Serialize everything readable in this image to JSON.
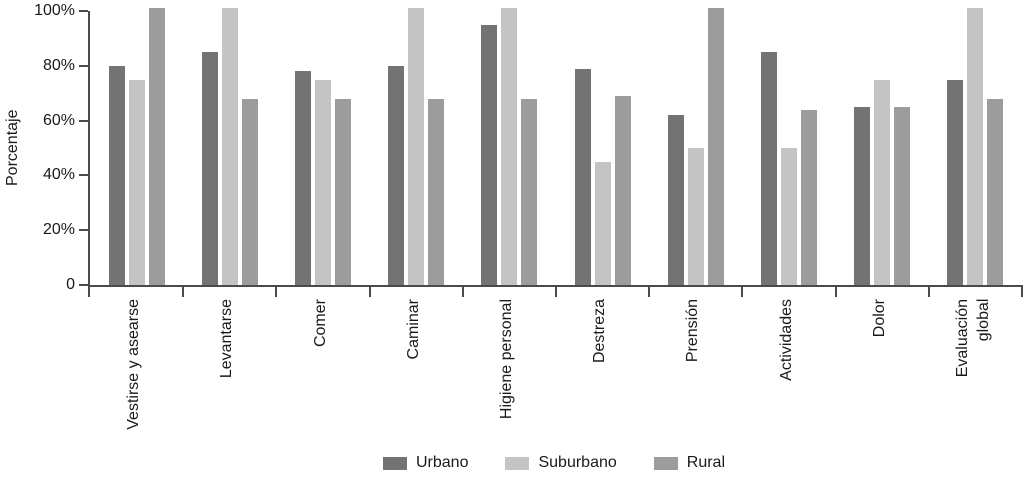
{
  "chart_data": {
    "type": "bar",
    "title": "",
    "xlabel": "",
    "ylabel": "Porcentaje",
    "ylim": [
      0,
      100
    ],
    "grid": false,
    "legend_position": "bottom-center",
    "yticks": [
      {
        "label": "100%",
        "value": 100
      },
      {
        "label": "80%",
        "value": 80
      },
      {
        "label": "60%",
        "value": 60
      },
      {
        "label": "40%",
        "value": 40
      },
      {
        "label": "20%",
        "value": 20
      },
      {
        "label": "0",
        "value": 0
      }
    ],
    "categories": [
      "Vestirse y asearse",
      "Levantarse",
      "Comer",
      "Caminar",
      "Higiene personal",
      "Destreza",
      "Prensión",
      "Actividades",
      "Dolor",
      "Evaluación\nglobal"
    ],
    "series": [
      {
        "name": "Urbano",
        "color": "#737373",
        "values": [
          80,
          85,
          78,
          80,
          95,
          79,
          62,
          85,
          65,
          75
        ]
      },
      {
        "name": "Suburbano",
        "color": "#c4c4c4",
        "values": [
          75,
          101,
          75,
          101,
          101,
          45,
          50,
          50,
          75,
          101
        ]
      },
      {
        "name": "Rural",
        "color": "#9c9c9c",
        "values": [
          101,
          68,
          68,
          68,
          68,
          69,
          101,
          64,
          65,
          68
        ]
      }
    ]
  },
  "colors": {
    "axis": "#4a4a4a",
    "text": "#1a1a1a",
    "background": "#ffffff"
  }
}
